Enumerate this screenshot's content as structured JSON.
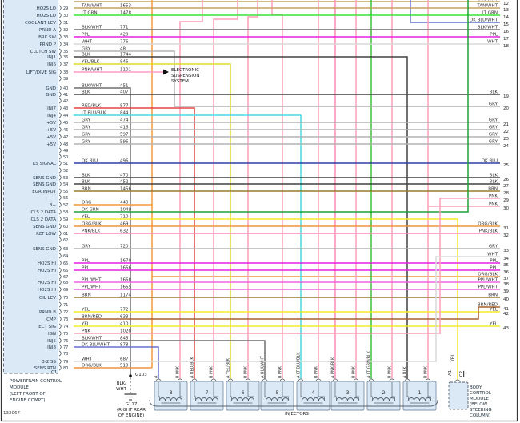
{
  "page": {
    "id": "132067"
  },
  "colors": {
    "TAN/WHT": "#c3a25e",
    "LT GRN": "#3ae23a",
    "BLK/WHT": "#6f6f6f",
    "PPL": "#e520e5",
    "WHT": "#d8d8d8",
    "GRY": "#b4b4b4",
    "BLK": "#404040",
    "YEL/BLK": "#dedc26",
    "PNK/WHT": "#ff9ec8",
    "RED/BLK": "#e64545",
    "LT BLU/BLK": "#45d9e6",
    "DK BLU": "#2e3da6",
    "BRN": "#997b2e",
    "ORG": "#f49a3a",
    "DK GRN": "#21a035",
    "YEL": "#f6e92a",
    "ORG/BLK": "#ee9440",
    "PNK/BLK": "#ff8ab5",
    "PNK": "#ff9fba",
    "BRN/RED": "#a8622e",
    "DK BLU/WHT": "#6571cf",
    "PPL/WHT": "#ee63e2",
    "LT GRN/BLK": "#3cc13c"
  },
  "pcm": {
    "connector": "C1",
    "title": "POWERTRAIN CONTROL\nMODULE\n(LEFT FRONT OF\nENGINE COMPT)",
    "pins": [
      {
        "n": "29",
        "name": "HO2S LO",
        "color": "TAN/WHT",
        "circuit": "1653"
      },
      {
        "n": "30",
        "name": "HO2S LO",
        "color": "LT GRN",
        "circuit": "1478"
      },
      {
        "n": "31",
        "name": "COOLANT LEV",
        "color": "",
        "circuit": ""
      },
      {
        "n": "32",
        "name": "PRND A",
        "color": "BLK/WHT",
        "circuit": "771"
      },
      {
        "n": "33",
        "name": "BRK SW",
        "color": "PPL",
        "circuit": "420"
      },
      {
        "n": "34",
        "name": "PRND P",
        "color": "WHT",
        "circuit": "776"
      },
      {
        "n": "35",
        "name": "CLUTCH SW",
        "color": "GRY",
        "circuit": "48"
      },
      {
        "n": "36",
        "name": "INJ1",
        "color": "BLK",
        "circuit": "1744"
      },
      {
        "n": "37",
        "name": "INJ6",
        "color": "YEL/BLK",
        "circuit": "846"
      },
      {
        "n": "38",
        "name": "LIFT/DIVE SIG",
        "color": "PNK/WHT",
        "circuit": "1101"
      },
      {
        "n": "39",
        "name": "",
        "color": "",
        "circuit": ""
      },
      {
        "n": "40",
        "name": "GND",
        "color": "BLK/WHT",
        "circuit": "451"
      },
      {
        "n": "41",
        "name": "GND",
        "color": "BLK",
        "circuit": "407"
      },
      {
        "n": "42",
        "name": "",
        "color": "",
        "circuit": ""
      },
      {
        "n": "43",
        "name": "INJ7",
        "color": "RED/BLK",
        "circuit": "877"
      },
      {
        "n": "44",
        "name": "INJ4",
        "color": "LT BLU/BLK",
        "circuit": "844"
      },
      {
        "n": "45",
        "name": "+5V",
        "color": "GRY",
        "circuit": "474"
      },
      {
        "n": "46",
        "name": "+5V",
        "color": "GRY",
        "circuit": "416"
      },
      {
        "n": "47",
        "name": "+5V",
        "color": "GRY",
        "circuit": "597"
      },
      {
        "n": "48",
        "name": "+5V",
        "color": "GRY",
        "circuit": "596"
      },
      {
        "n": "49",
        "name": "",
        "color": "",
        "circuit": ""
      },
      {
        "n": "50",
        "name": "",
        "color": "",
        "circuit": ""
      },
      {
        "n": "51",
        "name": "KS SIGNAL",
        "color": "DK BLU",
        "circuit": "496"
      },
      {
        "n": "52",
        "name": "",
        "color": "",
        "circuit": ""
      },
      {
        "n": "53",
        "name": "SENS GND",
        "color": "BLK",
        "circuit": "470"
      },
      {
        "n": "54",
        "name": "SENS GND",
        "color": "BLK",
        "circuit": "452"
      },
      {
        "n": "55",
        "name": "EGR INPUT",
        "color": "BRN",
        "circuit": "1456"
      },
      {
        "n": "56",
        "name": "",
        "color": "",
        "circuit": ""
      },
      {
        "n": "57",
        "name": "B+",
        "color": "ORG",
        "circuit": "440"
      },
      {
        "n": "58",
        "name": "CLS 2 DATA",
        "color": "DK GRN",
        "circuit": "1049"
      },
      {
        "n": "59",
        "name": "CLS 2 DATA",
        "color": "YEL",
        "circuit": "710"
      },
      {
        "n": "60",
        "name": "SENS GND",
        "color": "ORG/BLK",
        "circuit": "469"
      },
      {
        "n": "61",
        "name": "REF LOW",
        "color": "PNK/BLK",
        "circuit": "632"
      },
      {
        "n": "62",
        "name": "",
        "color": "",
        "circuit": ""
      },
      {
        "n": "63",
        "name": "SENS GND",
        "color": "GRY",
        "circuit": "720"
      },
      {
        "n": "64",
        "name": "",
        "color": "",
        "circuit": ""
      },
      {
        "n": "65",
        "name": "HO2S HI",
        "color": "PPL",
        "circuit": "1670"
      },
      {
        "n": "66",
        "name": "HO2S HI",
        "color": "PPL",
        "circuit": "1666"
      },
      {
        "n": "67",
        "name": "",
        "color": "",
        "circuit": ""
      },
      {
        "n": "68",
        "name": "HO2S HI",
        "color": "PPL/WHT",
        "circuit": "1668"
      },
      {
        "n": "69",
        "name": "HO2S HI",
        "color": "PPL/WHT",
        "circuit": "1665"
      },
      {
        "n": "70",
        "name": "OIL LEV",
        "color": "BRN",
        "circuit": "1174"
      },
      {
        "n": "71",
        "name": "",
        "color": "",
        "circuit": ""
      },
      {
        "n": "72",
        "name": "PRND B",
        "color": "YEL",
        "circuit": "772"
      },
      {
        "n": "73",
        "name": "CMP",
        "color": "BRN/RED",
        "circuit": "633"
      },
      {
        "n": "74",
        "name": "ECT SIG",
        "color": "YEL",
        "circuit": "410"
      },
      {
        "n": "75",
        "name": "IGN",
        "color": "PNK",
        "circuit": "1020"
      },
      {
        "n": "76",
        "name": "INJ5",
        "color": "BLK/WHT",
        "circuit": "845"
      },
      {
        "n": "77",
        "name": "INJ8",
        "color": "DK BLU/WHT",
        "circuit": "878"
      },
      {
        "n": "78",
        "name": "",
        "color": "",
        "circuit": ""
      },
      {
        "n": "79",
        "name": "3-2 SS",
        "color": "WHT",
        "circuit": "687"
      },
      {
        "n": "80",
        "name": "SENS RTN",
        "color": "ORG/BLK",
        "circuit": "510"
      }
    ]
  },
  "right_edge": [
    {
      "n": "12",
      "label": "TAN/WHT"
    },
    {
      "n": "13",
      "label": "TAN/WHT"
    },
    {
      "n": "14",
      "label": "LT GRN"
    },
    {
      "n": "15",
      "label": "DK BLU/WHT"
    },
    {
      "n": "16",
      "label": "BLK/WHT"
    },
    {
      "n": "17",
      "label": "PPL"
    },
    {
      "n": "18",
      "label": "WHT"
    },
    {
      "n": "19",
      "label": "BLK"
    },
    {
      "n": "20",
      "label": "GRY"
    },
    {
      "n": "21",
      "label": "GRY"
    },
    {
      "n": "22",
      "label": "GRY"
    },
    {
      "n": "23",
      "label": "GRY"
    },
    {
      "n": "24",
      "label": "GRY"
    },
    {
      "n": "25",
      "label": "DK BLU"
    },
    {
      "n": "26",
      "label": "BLK"
    },
    {
      "n": "27",
      "label": "BLK"
    },
    {
      "n": "28",
      "label": "BRN"
    },
    {
      "n": "29",
      "label": "PNK"
    },
    {
      "n": "30",
      "label": "PNK"
    },
    {
      "n": "31",
      "label": "ORG/BLK"
    },
    {
      "n": "32",
      "label": "PNK/BLK"
    },
    {
      "n": "33",
      "label": "GRY"
    },
    {
      "n": "34",
      "label": "WHT"
    },
    {
      "n": "35",
      "label": "PPL"
    },
    {
      "n": "36",
      "label": "PPL"
    },
    {
      "n": "37",
      "label": "ORG/BLK"
    },
    {
      "n": "38",
      "label": "PPL/WHT"
    },
    {
      "n": "39",
      "label": "PPL/WHT"
    },
    {
      "n": "40",
      "label": "BRN"
    },
    {
      "n": "41",
      "label": "BRN/RED"
    },
    {
      "n": "42",
      "label": "YEL"
    },
    {
      "n": "43",
      "label": "YEL"
    }
  ],
  "ess": {
    "text": "ELECTRONIC\nSUSPENSION\nSYSTEM"
  },
  "injectors": {
    "label": "INJECTORS",
    "items": [
      {
        "num": "8",
        "a": "A",
        "b": "B PNK"
      },
      {
        "num": "7",
        "a": "A RED/BLK",
        "b": "B PNK"
      },
      {
        "num": "6",
        "a": "A YEL/BLK",
        "b": "B PNK"
      },
      {
        "num": "5",
        "a": "A BLK/WHT",
        "b": "B PNK"
      },
      {
        "num": "4",
        "a": "A LT BLU/BLK",
        "b": "B PNK"
      },
      {
        "num": "3",
        "a": "A PNK/BLK",
        "b": "B PNK"
      },
      {
        "num": "2",
        "a": "A LT GRN/BLK",
        "b": "B PNK"
      },
      {
        "num": "1",
        "a": "A BLK",
        "b": "B PNK"
      }
    ]
  },
  "grounds": {
    "g103": "G103",
    "wire": "BLK/\nWHT",
    "g117": "G117\n(RIGHT REAR\nOF ENGINE)"
  },
  "bcm": {
    "pin": "A1",
    "connector": "C2",
    "wire": "YEL",
    "title": "BODY\nCONTROL\nMODULE\n(BELOW\nSTEERING\nCOLUMN)"
  }
}
